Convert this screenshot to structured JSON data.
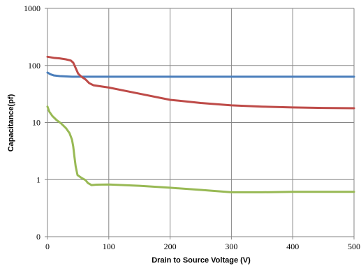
{
  "chart_data": {
    "type": "line",
    "title": "",
    "xlabel": "Drain to Source Voltage (V)",
    "ylabel": "Capacitance(pf)",
    "xlim": [
      0,
      500
    ],
    "ylim": [
      0.1,
      1000
    ],
    "y_scale": "log",
    "grid": true,
    "x_ticks": [
      0,
      100,
      200,
      300,
      400,
      500
    ],
    "x_tick_labels": [
      "0",
      "100",
      "200",
      "300",
      "400",
      "500"
    ],
    "y_ticks": [
      0.1,
      1,
      10,
      100,
      1000
    ],
    "y_tick_labels": [
      "0",
      "1",
      "10",
      "100",
      "1000"
    ],
    "legend": "none",
    "series": [
      {
        "color": "#4a7ebb",
        "points": [
          [
            0,
            75
          ],
          [
            5,
            70
          ],
          [
            10,
            67
          ],
          [
            20,
            65
          ],
          [
            40,
            63.5
          ],
          [
            60,
            63.5
          ],
          [
            100,
            63.5
          ],
          [
            200,
            63.5
          ],
          [
            300,
            63.5
          ],
          [
            400,
            63.5
          ],
          [
            500,
            63.5
          ]
        ]
      },
      {
        "color": "#be4b48",
        "points": [
          [
            0,
            142
          ],
          [
            10,
            136
          ],
          [
            20,
            133
          ],
          [
            30,
            128
          ],
          [
            38,
            122
          ],
          [
            42,
            112
          ],
          [
            46,
            90
          ],
          [
            50,
            72
          ],
          [
            55,
            64
          ],
          [
            62,
            57
          ],
          [
            68,
            49
          ],
          [
            75,
            45
          ],
          [
            100,
            41
          ],
          [
            150,
            32
          ],
          [
            200,
            25
          ],
          [
            250,
            22
          ],
          [
            300,
            20
          ],
          [
            350,
            19
          ],
          [
            400,
            18.4
          ],
          [
            450,
            18
          ],
          [
            500,
            17.8
          ]
        ]
      },
      {
        "color": "#98b954",
        "points": [
          [
            0,
            19
          ],
          [
            3,
            15.5
          ],
          [
            8,
            13
          ],
          [
            15,
            11
          ],
          [
            22,
            9.7
          ],
          [
            30,
            8
          ],
          [
            36,
            6.5
          ],
          [
            40,
            5
          ],
          [
            42,
            3.8
          ],
          [
            44,
            2.5
          ],
          [
            46,
            1.7
          ],
          [
            49,
            1.2
          ],
          [
            55,
            1.08
          ],
          [
            62,
            0.98
          ],
          [
            66,
            0.87
          ],
          [
            72,
            0.8
          ],
          [
            80,
            0.815
          ],
          [
            100,
            0.82
          ],
          [
            150,
            0.78
          ],
          [
            200,
            0.72
          ],
          [
            250,
            0.66
          ],
          [
            300,
            0.6
          ],
          [
            350,
            0.6
          ],
          [
            400,
            0.61
          ],
          [
            450,
            0.61
          ],
          [
            500,
            0.61
          ]
        ]
      }
    ]
  }
}
